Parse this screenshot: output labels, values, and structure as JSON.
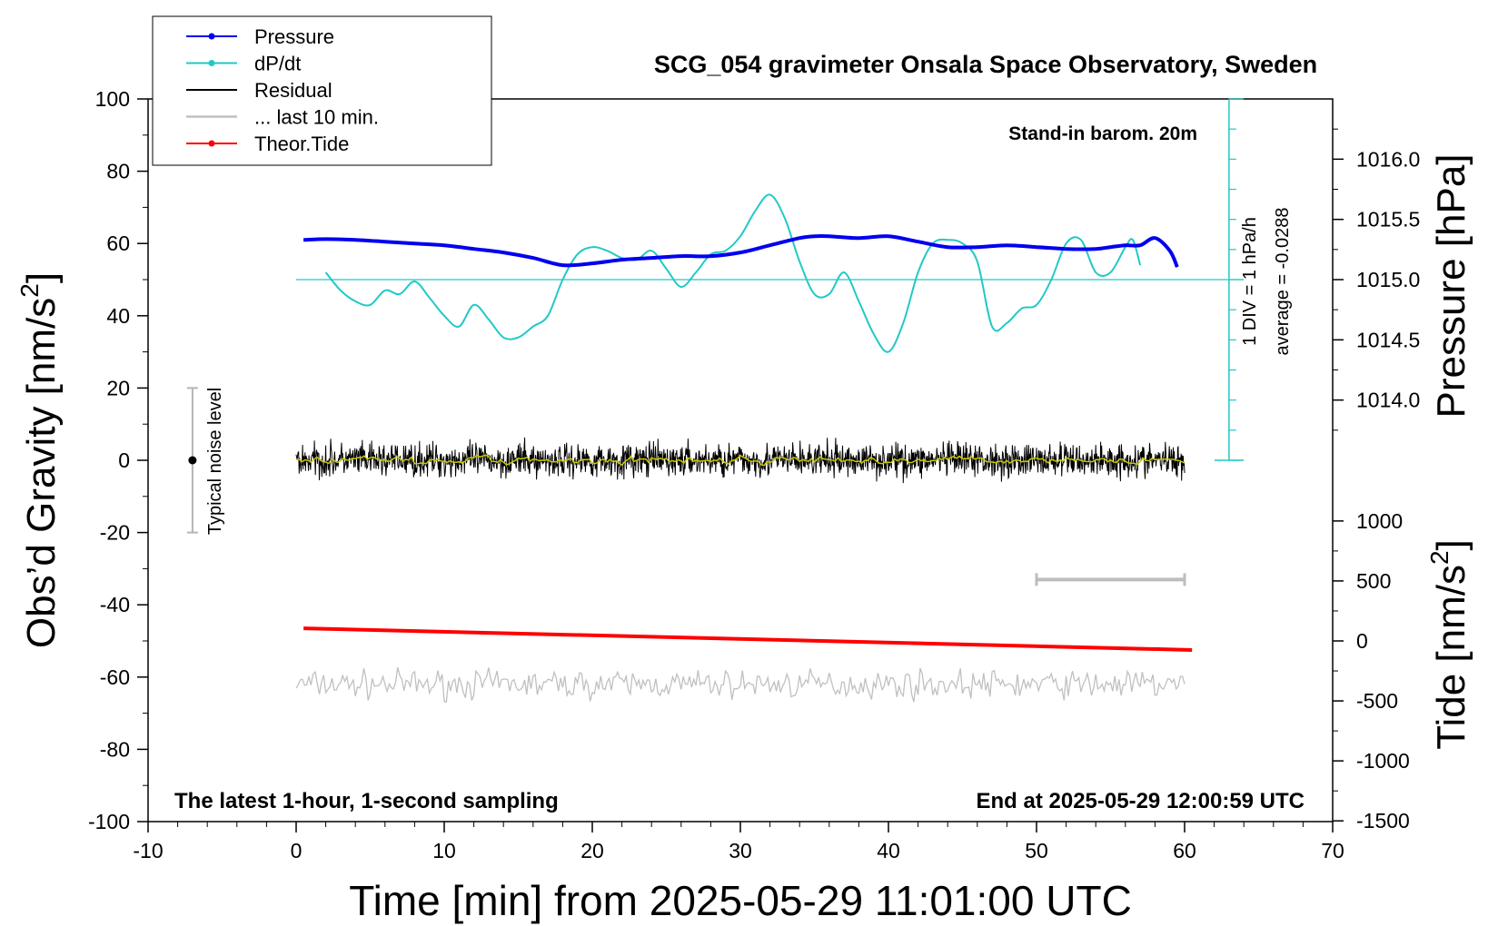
{
  "chart_data": {
    "type": "line",
    "title": "SCG_054 gravimeter Onsala Space Observatory, Sweden",
    "xlabel": "Time [min] from 2025-05-29 11:01:00 UTC",
    "ylabel_left_main": "Obs’d Gravity [nm/s",
    "ylabel_left_sup": "2",
    "ylabel_left_close": "]",
    "ylabel_right_top": "Pressure [hPa]",
    "ylabel_right_bottom_main": "Tide [nm/s",
    "ylabel_right_bottom_sup": "2",
    "ylabel_right_bottom_close": "]",
    "xlim": [
      -10,
      70
    ],
    "ylim": [
      -100,
      100
    ],
    "xticks": [
      -10,
      0,
      10,
      20,
      30,
      40,
      50,
      60,
      70
    ],
    "yticks": [
      -100,
      -80,
      -60,
      -40,
      -20,
      0,
      20,
      40,
      60,
      80,
      100
    ],
    "pressure_axis": {
      "ticks": [
        1014.0,
        1014.5,
        1015.0,
        1015.5,
        1016.0
      ],
      "tick_labels": [
        "1014.0",
        "1014.5",
        "1015.0",
        "1015.5",
        "1016.0"
      ]
    },
    "tide_axis": {
      "ticks": [
        -1500,
        -1000,
        -500,
        0,
        500,
        1000
      ],
      "tick_labels": [
        "-1500",
        "-1000",
        "-500",
        "0",
        "500",
        "1000"
      ]
    },
    "annotations": {
      "barometer": "Stand-in barom. 20m",
      "div_note": "1 DIV = 1 hPa/h",
      "average_note": "average = -0.0288",
      "noise_label": "Typical noise level",
      "bottom_left": "The latest 1-hour, 1-second sampling",
      "bottom_right": "End at 2025-05-29 12:00:59 UTC"
    },
    "noise_bar": {
      "x": -7,
      "y_center": 0,
      "y_range": [
        -20,
        20
      ]
    },
    "ten_min_bar": {
      "x_range": [
        50,
        60
      ],
      "y": -33
    },
    "dpdt_baseline": 50,
    "legend": {
      "position": "top-left",
      "entries": [
        {
          "label": "Pressure",
          "color": "#0000ee",
          "marker": true
        },
        {
          "label": "dP/dt",
          "color": "#22c8c8",
          "marker": true
        },
        {
          "label": "Residual",
          "color": "#000000",
          "marker": false
        },
        {
          "label": "... last 10 min.",
          "color": "#c0c0c0",
          "marker": false
        },
        {
          "label": "Theor.Tide",
          "color": "#ff0000",
          "marker": true
        }
      ]
    },
    "series": [
      {
        "name": "Pressure",
        "color": "#0000ee",
        "x": [
          0.5,
          2,
          4,
          6,
          8,
          10,
          12,
          14,
          16,
          18,
          20,
          22,
          24,
          26,
          28,
          30,
          32,
          34,
          35,
          36,
          38,
          40,
          42,
          44,
          46,
          48,
          50,
          52,
          54,
          55,
          56,
          57,
          58,
          59,
          59.5
        ],
        "y": [
          61,
          61.2,
          61,
          60.5,
          60,
          59.5,
          58.5,
          57.5,
          56,
          54,
          54.5,
          55.5,
          56,
          56.5,
          56.5,
          57.5,
          59.5,
          61.5,
          62,
          62,
          61.5,
          62,
          60.5,
          59,
          59,
          59.5,
          59,
          58.5,
          58.5,
          59,
          59.5,
          59.5,
          61.5,
          58,
          53.5
        ]
      },
      {
        "name": "dP/dt",
        "color": "#22c8c8",
        "x": [
          2,
          3,
          4,
          5,
          6,
          7,
          8,
          9,
          10,
          11,
          12,
          13,
          14,
          15,
          16,
          17,
          18,
          19,
          20,
          21,
          22,
          23,
          24,
          25,
          26,
          27,
          28,
          29,
          30,
          31,
          32,
          33,
          34,
          35,
          36,
          37,
          38,
          39,
          40,
          41,
          42,
          43,
          44,
          45,
          46,
          47,
          48,
          49,
          50,
          51,
          52,
          53,
          54,
          55,
          56,
          56.5,
          57
        ],
        "y": [
          52,
          47,
          44,
          43,
          47,
          46,
          49.5,
          45,
          40,
          37,
          43,
          39,
          34,
          34,
          37,
          40,
          50,
          57,
          59,
          58,
          56,
          55.5,
          58,
          53,
          48,
          52,
          57,
          58,
          62,
          69,
          73.5,
          67,
          55,
          46,
          46,
          52,
          44,
          35,
          30,
          38,
          52,
          60,
          61,
          60,
          55,
          37,
          38,
          42,
          43,
          50,
          60,
          61,
          52,
          52,
          59,
          61,
          54
        ]
      },
      {
        "name": "Residual",
        "color": "#000000",
        "x_range": [
          0,
          60
        ],
        "center": 0,
        "amplitude": 8
      },
      {
        "name": "... last 10 min.",
        "color": "#c0c0c0",
        "x_range": [
          0,
          60
        ],
        "center": -62,
        "amplitude": 6
      },
      {
        "name": "Theor.Tide",
        "color": "#ff0000",
        "x": [
          0.5,
          60.5
        ],
        "y": [
          -46.5,
          -52.5
        ]
      }
    ]
  }
}
